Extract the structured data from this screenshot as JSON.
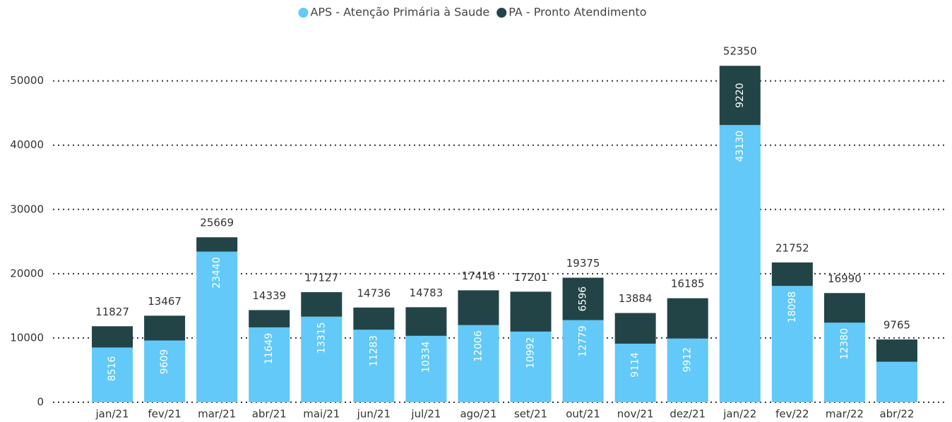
{
  "chart_data": {
    "type": "stacked-bar",
    "categories": [
      "jan/21",
      "fev/21",
      "mar/21",
      "abr/21",
      "mai/21",
      "jun/21",
      "jul/21",
      "ago/21",
      "set/21",
      "out/21",
      "nov/21",
      "dez/21",
      "jan/22",
      "fev/22",
      "mar/22",
      "abr/22"
    ],
    "series": [
      {
        "name": "APS - Atenção Primária à Saude",
        "color": "#62c9f8",
        "values": [
          8516,
          9609,
          23440,
          11649,
          13315,
          11283,
          10334,
          12006,
          10992,
          12779,
          9114,
          9912,
          43130,
          18098,
          12380,
          6300
        ],
        "value_labels": [
          "8516",
          "9609",
          "23440",
          "11649",
          "13315",
          "11283",
          "10334",
          "12006",
          "10992",
          "12779",
          "9114",
          "9912",
          "43130",
          "18098",
          "12380",
          null
        ]
      },
      {
        "name": "PA - Pronto Atendimento",
        "color": "#234447",
        "values": [
          3311,
          3858,
          2229,
          2690,
          3812,
          3453,
          4449,
          5410,
          6209,
          6596,
          4770,
          6273,
          9220,
          3654,
          4610,
          3465
        ],
        "value_labels": [
          null,
          null,
          null,
          null,
          null,
          null,
          null,
          null,
          null,
          "6596",
          null,
          null,
          "9220",
          null,
          null,
          null
        ]
      }
    ],
    "totals": [
      11827,
      13467,
      25669,
      14339,
      17127,
      14736,
      14783,
      17416,
      17201,
      19375,
      13884,
      16185,
      52350,
      21752,
      16990,
      9765
    ],
    "ylim": [
      0,
      56000
    ],
    "yticks": [
      0,
      10000,
      20000,
      30000,
      40000,
      50000
    ],
    "grid": true,
    "legend": "top"
  }
}
